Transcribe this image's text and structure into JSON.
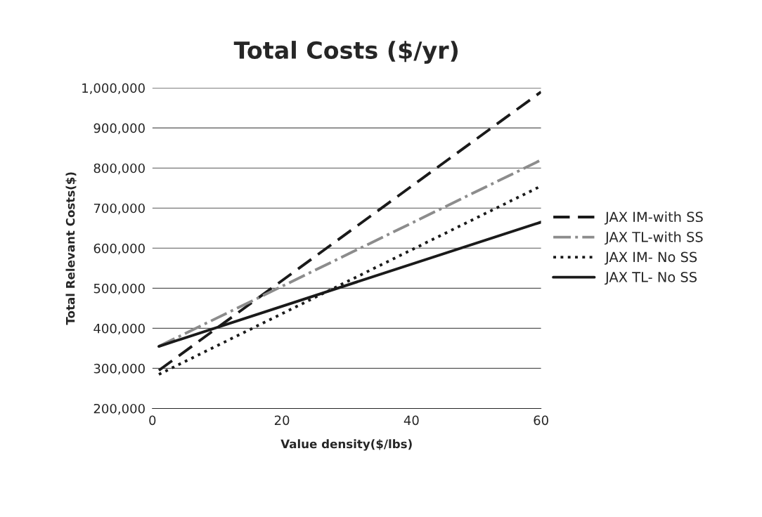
{
  "chart_data": {
    "type": "line",
    "title": "Total Costs ($/yr)",
    "xlabel": "Value density($/lbs)",
    "ylabel": "Total Relevant Costs($)",
    "xlim": [
      0,
      60
    ],
    "xticks": [
      0,
      20,
      40,
      60
    ],
    "ylim": [
      200000,
      1000000
    ],
    "yticks": [
      {
        "value": 200000,
        "label": "200,000"
      },
      {
        "value": 300000,
        "label": "300,000"
      },
      {
        "value": 400000,
        "label": "400,000"
      },
      {
        "value": 500000,
        "label": "500,000"
      },
      {
        "value": 600000,
        "label": "600,000"
      },
      {
        "value": 700000,
        "label": "700,000"
      },
      {
        "value": 800000,
        "label": "800,000"
      },
      {
        "value": 900000,
        "label": "900,000"
      },
      {
        "value": 1000000,
        "label": "1,000,000"
      }
    ],
    "x": [
      1,
      60
    ],
    "grid": "y",
    "legend": "right",
    "marker": "none",
    "series": [
      {
        "name": "JAX IM-with SS",
        "color": "#1a1a1a",
        "line_style": "dashed",
        "values": [
          295000,
          990000
        ]
      },
      {
        "name": "JAX TL-with SS",
        "color": "#8c8c8c",
        "line_style": "dashdot",
        "values": [
          355000,
          820000
        ]
      },
      {
        "name": "JAX IM- No SS",
        "color": "#1a1a1a",
        "line_style": "dotted",
        "values": [
          285000,
          755000
        ]
      },
      {
        "name": "JAX TL- No SS",
        "color": "#1a1a1a",
        "line_style": "solid",
        "values": [
          355000,
          665000
        ]
      }
    ]
  }
}
